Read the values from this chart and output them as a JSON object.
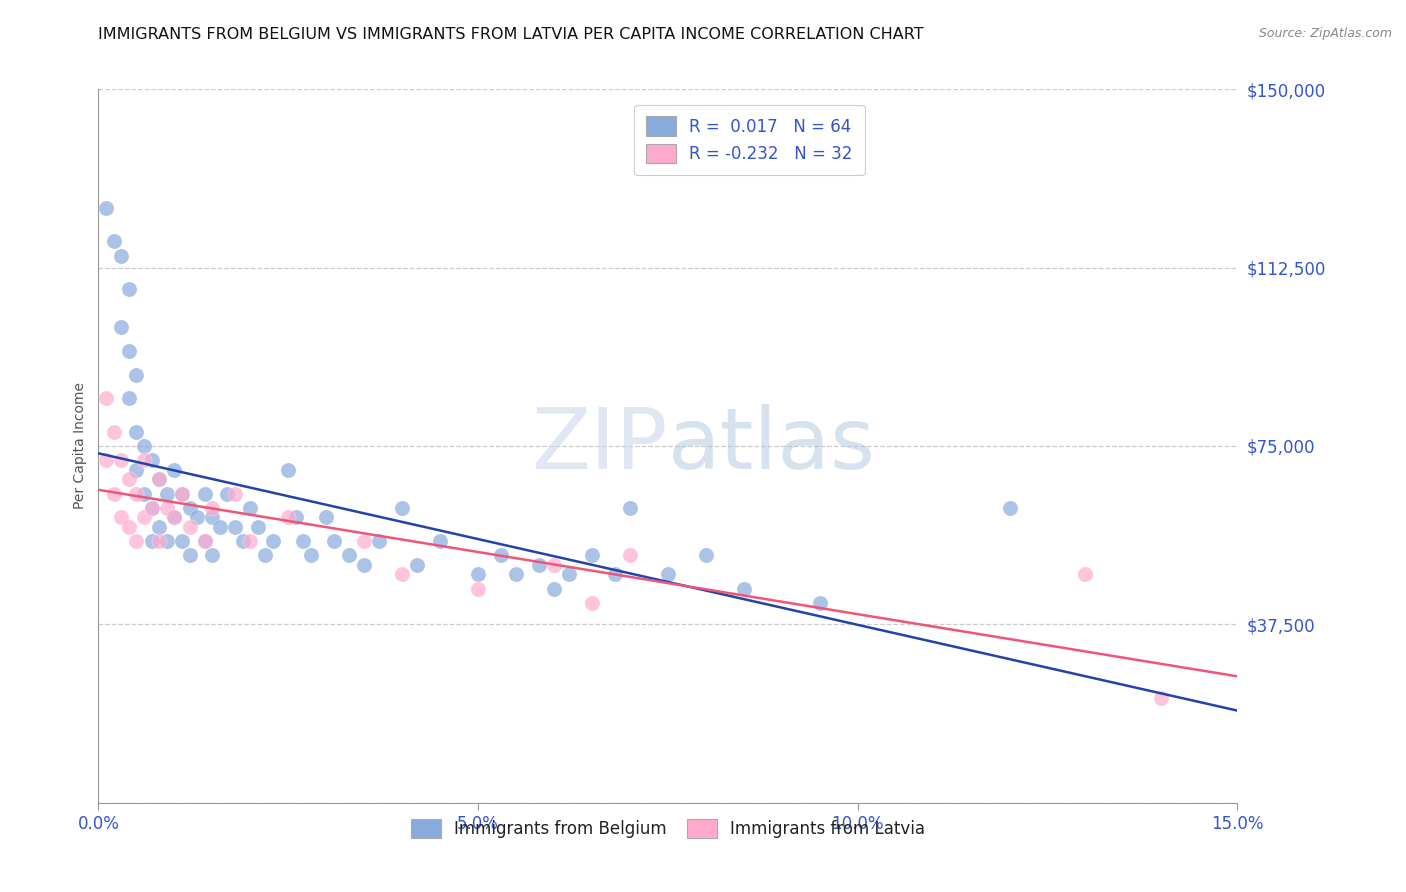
{
  "title": "IMMIGRANTS FROM BELGIUM VS IMMIGRANTS FROM LATVIA PER CAPITA INCOME CORRELATION CHART",
  "source_text": "Source: ZipAtlas.com",
  "ylabel": "Per Capita Income",
  "xlim": [
    0,
    0.15
  ],
  "ylim": [
    0,
    150000
  ],
  "yticks": [
    0,
    37500,
    75000,
    112500,
    150000
  ],
  "ytick_labels": [
    "",
    "$37,500",
    "$75,000",
    "$112,500",
    "$150,000"
  ],
  "xticks": [
    0.0,
    0.05,
    0.1,
    0.15
  ],
  "xtick_labels": [
    "0.0%",
    "5.0%",
    "10.0%",
    "15.0%"
  ],
  "background_color": "#ffffff",
  "grid_color": "#cccccc",
  "axis_label_color": "#3355cc",
  "legend_R1": "0.017",
  "legend_N1": "64",
  "legend_R2": "-0.232",
  "legend_N2": "32",
  "belgium_color": "#88aadd",
  "latvia_color": "#ffaacc",
  "trend_belgium_color": "#2244aa",
  "trend_latvia_color": "#ee5577",
  "belgium_x": [
    0.001,
    0.002,
    0.003,
    0.003,
    0.004,
    0.004,
    0.004,
    0.005,
    0.005,
    0.005,
    0.006,
    0.006,
    0.007,
    0.007,
    0.007,
    0.008,
    0.008,
    0.009,
    0.009,
    0.01,
    0.01,
    0.011,
    0.011,
    0.012,
    0.012,
    0.013,
    0.014,
    0.014,
    0.015,
    0.015,
    0.016,
    0.017,
    0.018,
    0.019,
    0.02,
    0.021,
    0.022,
    0.023,
    0.025,
    0.026,
    0.027,
    0.028,
    0.03,
    0.031,
    0.033,
    0.035,
    0.037,
    0.04,
    0.042,
    0.045,
    0.05,
    0.053,
    0.055,
    0.058,
    0.06,
    0.062,
    0.065,
    0.068,
    0.07,
    0.075,
    0.08,
    0.085,
    0.095,
    0.12
  ],
  "belgium_y": [
    125000,
    118000,
    115000,
    100000,
    108000,
    95000,
    85000,
    90000,
    78000,
    70000,
    75000,
    65000,
    72000,
    62000,
    55000,
    68000,
    58000,
    65000,
    55000,
    70000,
    60000,
    65000,
    55000,
    62000,
    52000,
    60000,
    65000,
    55000,
    60000,
    52000,
    58000,
    65000,
    58000,
    55000,
    62000,
    58000,
    52000,
    55000,
    70000,
    60000,
    55000,
    52000,
    60000,
    55000,
    52000,
    50000,
    55000,
    62000,
    50000,
    55000,
    48000,
    52000,
    48000,
    50000,
    45000,
    48000,
    52000,
    48000,
    62000,
    48000,
    52000,
    45000,
    42000,
    62000
  ],
  "latvia_x": [
    0.001,
    0.001,
    0.002,
    0.002,
    0.003,
    0.003,
    0.004,
    0.004,
    0.005,
    0.005,
    0.006,
    0.006,
    0.007,
    0.008,
    0.008,
    0.009,
    0.01,
    0.011,
    0.012,
    0.014,
    0.015,
    0.018,
    0.02,
    0.025,
    0.035,
    0.04,
    0.05,
    0.06,
    0.065,
    0.07,
    0.13,
    0.14
  ],
  "latvia_y": [
    85000,
    72000,
    78000,
    65000,
    72000,
    60000,
    68000,
    58000,
    65000,
    55000,
    72000,
    60000,
    62000,
    68000,
    55000,
    62000,
    60000,
    65000,
    58000,
    55000,
    62000,
    65000,
    55000,
    60000,
    55000,
    48000,
    45000,
    50000,
    42000,
    52000,
    48000,
    22000
  ]
}
